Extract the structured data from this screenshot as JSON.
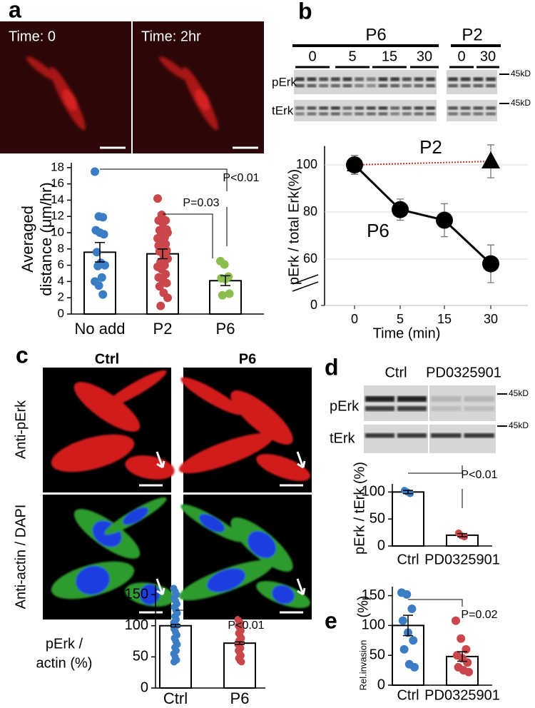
{
  "panel_labels": [
    "a",
    "b",
    "c",
    "d",
    "e"
  ],
  "panel_a": {
    "image_labels": [
      "Time: 0",
      "Time: 2hr"
    ]
  },
  "panel_b": {
    "groups": [
      "P6",
      "P2"
    ],
    "lanes": [
      "0",
      "5",
      "15",
      "30",
      "0",
      "30"
    ],
    "rows": [
      "pErk",
      "tErk"
    ],
    "markers": [
      "45kD",
      "45kD"
    ]
  },
  "panel_c": {
    "columns": [
      "Ctrl",
      "P6"
    ],
    "rows": [
      "Anti-pErk",
      "Anti-actin / DAPI"
    ]
  },
  "panel_d": {
    "columns": [
      "Ctrl",
      "PD0325901"
    ],
    "rows": [
      "pErk",
      "tErk"
    ],
    "markers": [
      "45kD",
      "45kD"
    ]
  },
  "chart_data": [
    {
      "type": "bar",
      "ylabel": [
        "Averaged",
        "distance (μm/hr)"
      ],
      "categories": [
        "No add",
        "P2",
        "P6"
      ],
      "values": [
        7.6,
        7.4,
        4.1
      ],
      "errors": [
        1.2,
        0.6,
        0.6
      ],
      "points": [
        [
          17.5,
          12,
          11.9,
          10.3,
          10,
          9.8,
          7.6,
          6.3,
          6,
          5.9,
          4.5,
          4,
          3.5,
          2.4
        ],
        [
          14.2,
          12.2,
          11.5,
          11.5,
          11.2,
          10.4,
          10.3,
          10.2,
          10,
          9.6,
          9.4,
          9.3,
          8.9,
          8.6,
          8.4,
          8.2,
          7.8,
          7.7,
          7.2,
          6.8,
          6.4,
          6,
          5.8,
          5.5,
          4.9,
          4.5,
          4.2,
          3.8,
          3.4,
          2.6,
          2,
          1
        ],
        [
          6.5,
          6.1,
          4.6,
          4.4,
          4.3,
          2.5,
          2.3
        ]
      ],
      "colors": [
        "#3b7dc4",
        "#c9474b",
        "#8cbe4e"
      ],
      "ylim": [
        0,
        18.6
      ],
      "yticks": [
        0,
        2,
        4,
        6,
        8,
        10,
        12,
        14,
        16,
        18
      ],
      "annotations": [
        "P=0.03",
        "P<0.01"
      ]
    },
    {
      "type": "line",
      "xlabel": "Time (min)",
      "ylabel": "pErk / total Erk(%)",
      "categories": [
        "0",
        "5",
        "15",
        "30"
      ],
      "series": [
        {
          "name": "P6",
          "color": "#000000",
          "marker": "circle",
          "x": [
            "0",
            "5",
            "15",
            "30"
          ],
          "values": [
            100,
            81,
            76.5,
            58
          ],
          "errors": [
            4,
            4.5,
            7,
            8
          ]
        },
        {
          "name": "P2",
          "color": "#c0392b",
          "marker": "triangle",
          "x": [
            "0",
            "30"
          ],
          "values": [
            100,
            101.5
          ],
          "errors": [
            4,
            7
          ]
        }
      ],
      "ylim": [
        0,
        108
      ],
      "ybreak": 50,
      "yticks": [
        0,
        60,
        80,
        100
      ],
      "grid": true
    },
    {
      "type": "bar",
      "ylabel": [
        "pErk /",
        "actin (%)"
      ],
      "categories": [
        "Ctrl",
        "P6"
      ],
      "values": [
        100,
        72
      ],
      "errors": [
        2,
        2
      ],
      "points": [
        [
          160,
          155,
          150,
          145,
          140,
          135,
          130,
          125,
          120,
          115,
          110,
          105,
          100,
          100,
          95,
          90,
          85,
          80,
          75,
          70,
          65,
          60,
          55,
          50,
          45,
          42
        ],
        [
          110,
          107,
          104,
          100,
          96,
          92,
          88,
          84,
          80,
          76,
          72,
          70,
          68,
          64,
          60,
          56,
          52,
          48,
          44,
          42
        ]
      ],
      "colors": [
        "#3b7dc4",
        "#c9474b"
      ],
      "ylim": [
        0,
        165
      ],
      "yticks": [
        0,
        50,
        100,
        150
      ],
      "annotations": [
        "P<0.01"
      ]
    },
    {
      "type": "bar",
      "ylabel": [
        "pErk / tErk (%)"
      ],
      "categories": [
        "Ctrl",
        "PD0325901"
      ],
      "values": [
        100,
        20
      ],
      "errors": [
        3,
        3
      ],
      "points": [
        [
          103,
          100,
          97
        ],
        [
          24,
          19,
          17
        ]
      ],
      "colors": [
        "#3b7dc4",
        "#c9474b"
      ],
      "ylim": [
        0,
        115
      ],
      "yticks": [
        0,
        50,
        100
      ],
      "annotations": [
        "P<0.01"
      ]
    },
    {
      "type": "bar",
      "ylabel": [
        "Rel.invasion",
        "(%)"
      ],
      "categories": [
        "Ctrl",
        "PD0325901"
      ],
      "values": [
        100,
        48
      ],
      "errors": [
        17,
        8
      ],
      "points": [
        [
          155,
          152,
          128,
          108,
          88,
          75,
          60,
          35,
          30
        ],
        [
          108,
          78,
          60,
          50,
          45,
          38,
          30,
          25,
          22
        ]
      ],
      "colors": [
        "#3b7dc4",
        "#c9474b"
      ],
      "ylim": [
        0,
        165
      ],
      "yticks": [
        0,
        50,
        100,
        150
      ],
      "annotations": [
        "P=0.02"
      ]
    }
  ]
}
